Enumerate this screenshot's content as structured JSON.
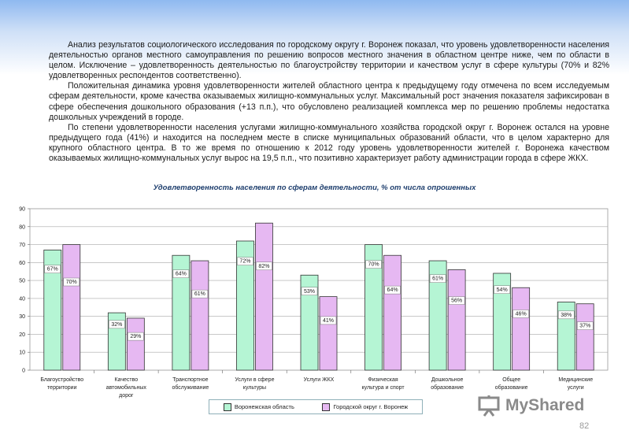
{
  "paragraphs": [
    "Анализ результатов социологического исследования по городскому округу г. Воронеж показал, что уровень удовлетворенности населения деятельностью органов местного самоуправления по решению вопросов местного значения в областном центре ниже, чем по области в целом. Исключение – удовлетворенность деятельностью по благоустройству территории и качеством услуг в сфере культуры (70% и 82% удовлетворенных респондентов соответственно).",
    "Положительная динамика уровня удовлетворенности жителей областного центра к предыдущему году отмечена по всем исследуемым сферам деятельности, кроме качества оказываемых жилищно-коммунальных услуг. Максимальный рост значения показателя зафиксирован в сфере обеспечения дошкольного образования (+13 п.п.), что обусловлено реализацией комплекса мер по решению проблемы недостатка дошкольных учреждений в городе.",
    "По степени удовлетворенности населения услугами жилищно-коммунального хозяйства городской округ г. Воронеж остался на уровне предыдущего года (41%) и находится на последнем месте в списке муниципальных образований области, что в целом характерно для крупного областного центра. В то же время по отношению к 2012 году уровень удовлетворенности жителей г. Воронежа качеством оказываемых жилищно-коммунальных услуг вырос на 19,5 п.п., что позитивно характеризует работу администрации города в сфере ЖКХ."
  ],
  "chart_data": {
    "type": "bar",
    "title": "Удовлетворенность населения по сферам деятельности, % от числа опрошенных",
    "categories": [
      [
        "Благоустройство",
        "территории"
      ],
      [
        "Качество",
        "автомобильных",
        "дорог"
      ],
      [
        "Транспортное",
        "обслуживание"
      ],
      [
        "Услуги в сфере",
        "культуры"
      ],
      [
        "Услуги ЖКХ"
      ],
      [
        "Физическая",
        "культура и спорт"
      ],
      [
        "Дошкольное",
        "образование"
      ],
      [
        "Общее",
        "образование"
      ],
      [
        "Медицинские",
        "услуги"
      ]
    ],
    "series": [
      {
        "name": "Воронежская область",
        "values": [
          67,
          32,
          64,
          72,
          53,
          70,
          61,
          54,
          38
        ],
        "color": "#b5f5d4"
      },
      {
        "name": "Городской округ г. Воронеж",
        "values": [
          70,
          29,
          61,
          82,
          41,
          64,
          56,
          46,
          37
        ],
        "color": "#e6b8f2"
      }
    ],
    "ylim": [
      0,
      90
    ],
    "yticks": [
      0,
      10,
      20,
      30,
      40,
      50,
      60,
      70,
      80,
      90
    ],
    "grid": true,
    "legend_position": "bottom",
    "label_suffix": "%"
  },
  "logo": {
    "text": "MyShared",
    "icon": "presentation-board-icon"
  },
  "page_number": "82"
}
